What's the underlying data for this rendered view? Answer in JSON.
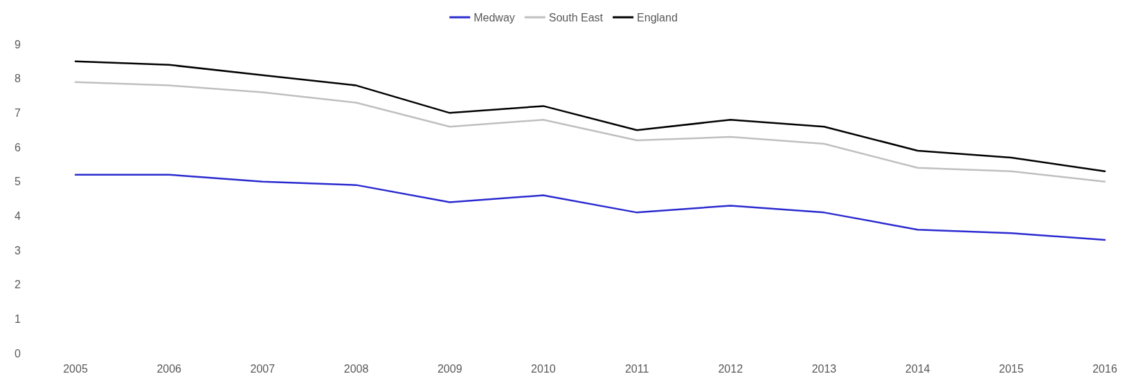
{
  "chart_data": {
    "type": "line",
    "categories": [
      "2005",
      "2006",
      "2007",
      "2008",
      "2009",
      "2010",
      "2011",
      "2012",
      "2013",
      "2014",
      "2015",
      "2016"
    ],
    "series": [
      {
        "name": "Medway",
        "color": "#2a2ad0",
        "values": [
          5.2,
          5.2,
          5.0,
          4.9,
          4.4,
          4.6,
          4.1,
          4.3,
          4.1,
          3.6,
          3.5,
          3.3
        ]
      },
      {
        "name": "South East",
        "color": "#bfbfbf",
        "values": [
          7.9,
          7.8,
          7.6,
          7.3,
          6.6,
          6.8,
          6.2,
          6.3,
          6.1,
          5.4,
          5.3,
          5.0
        ]
      },
      {
        "name": "England",
        "color": "#000000",
        "values": [
          8.5,
          8.4,
          8.1,
          7.8,
          7.0,
          7.2,
          6.5,
          6.8,
          6.6,
          5.9,
          5.7,
          5.3
        ]
      }
    ],
    "ylim": [
      0,
      9
    ],
    "yticks": [
      0,
      1,
      2,
      3,
      4,
      5,
      6,
      7,
      8,
      9
    ],
    "grid": false,
    "legend": "top",
    "marker": "none",
    "line_style": "solid"
  }
}
